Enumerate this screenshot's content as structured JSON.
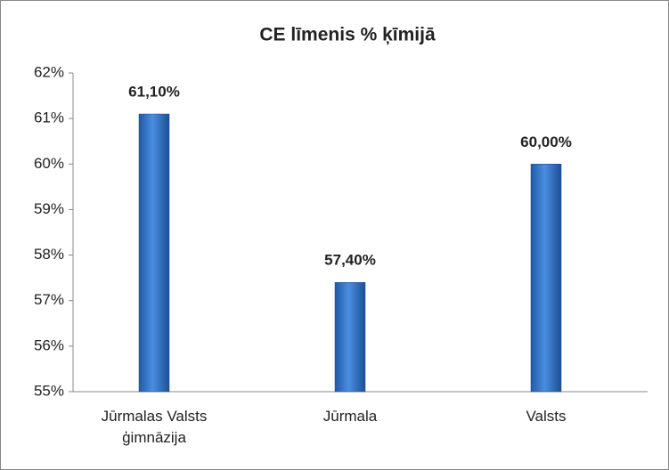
{
  "chart_data": {
    "type": "bar",
    "title": "CE līmenis % ķīmijā",
    "categories": [
      "Jūrmalas Valsts ģimnāzija",
      "Jūrmala",
      "Valsts"
    ],
    "values": [
      61.1,
      57.4,
      60.0
    ],
    "value_labels": [
      "61,10%",
      "57,40%",
      "60,00%"
    ],
    "color": "#3f7fd0",
    "ylim": [
      55,
      62
    ],
    "yticks": [
      {
        "value": 55,
        "label": "55%"
      },
      {
        "value": 56,
        "label": "56%"
      },
      {
        "value": 57,
        "label": "57%"
      },
      {
        "value": 58,
        "label": "58%"
      },
      {
        "value": 59,
        "label": "59%"
      },
      {
        "value": 60,
        "label": "60%"
      },
      {
        "value": 61,
        "label": "61%"
      },
      {
        "value": 62,
        "label": "62%"
      }
    ],
    "grid": false
  }
}
